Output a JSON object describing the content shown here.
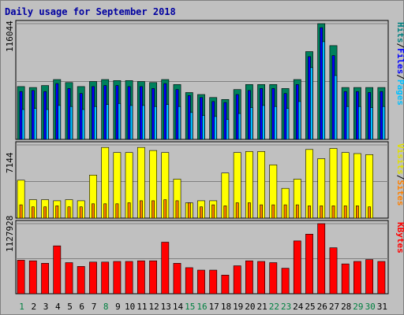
{
  "chart_data": {
    "type": "bar",
    "title": "Daily usage for September 2018",
    "days": [
      "1",
      "2",
      "3",
      "4",
      "5",
      "6",
      "7",
      "8",
      "9",
      "10",
      "11",
      "12",
      "13",
      "14",
      "15",
      "16",
      "17",
      "18",
      "19",
      "20",
      "21",
      "22",
      "23",
      "24",
      "25",
      "26",
      "27",
      "28",
      "29",
      "30",
      "31"
    ],
    "weekend_days": [
      "1",
      "8",
      "15",
      "16",
      "22",
      "23",
      "29",
      "30"
    ],
    "panels": [
      {
        "name": "pages-files-hits",
        "ymax_label": "116044",
        "ylim": [
          0,
          116044
        ],
        "right_labels": [
          {
            "text": "Hits",
            "color": "#008080"
          },
          {
            "text": "Files",
            "color": "#0000ff"
          },
          {
            "text": "Pages",
            "color": "#00c0ff"
          }
        ],
        "series": [
          {
            "name": "Hits",
            "color": "#00805c",
            "values": [
              53000,
              52000,
              54000,
              60000,
              57000,
              53000,
              58000,
              60000,
              59000,
              59000,
              58000,
              57000,
              60000,
              55000,
              47000,
              45000,
              42000,
              40000,
              50000,
              55000,
              55000,
              55000,
              51000,
              60000,
              88000,
              117000,
              94000,
              52000,
              52000,
              52000,
              52000
            ]
          },
          {
            "name": "Files",
            "color": "#0000ff",
            "values": [
              48000,
              49000,
              48000,
              56000,
              51000,
              46000,
              53000,
              54000,
              54000,
              53000,
              53000,
              51000,
              56000,
              50000,
              44000,
              42000,
              38000,
              37000,
              45000,
              49000,
              51000,
              51000,
              46000,
              55000,
              83000,
              112000,
              84000,
              48000,
              48000,
              47000,
              48000
            ]
          },
          {
            "name": "Pages",
            "color": "#00c0ff",
            "values": [
              30000,
              31000,
              30000,
              34000,
              33000,
              30000,
              33000,
              35000,
              36000,
              34000,
              34000,
              33000,
              35000,
              33000,
              27000,
              24000,
              23000,
              20000,
              26000,
              32000,
              34000,
              33000,
              31000,
              38000,
              72000,
              98000,
              64000,
              33000,
              33000,
              32000,
              33000
            ]
          }
        ]
      },
      {
        "name": "visits-sites",
        "ymax_label": "7144",
        "ylim": [
          0,
          7144
        ],
        "right_labels": [
          {
            "text": "Visits",
            "color": "#e0e000"
          },
          {
            "text": "Sites",
            "color": "#ff8000"
          }
        ],
        "series": [
          {
            "name": "Visits",
            "color": "#ffff00",
            "values": [
              3700,
              1800,
              1800,
              1700,
              1800,
              1700,
              4200,
              6900,
              6400,
              6400,
              6900,
              6600,
              6400,
              3800,
              1500,
              1700,
              1700,
              4400,
              6400,
              6500,
              6500,
              5200,
              2900,
              3800,
              6700,
              5800,
              6800,
              6400,
              6300,
              6200,
              0
            ]
          },
          {
            "name": "Sites",
            "color": "#ff8000",
            "values": [
              1300,
              1100,
              1100,
              1200,
              1100,
              1100,
              1400,
              1400,
              1400,
              1500,
              1700,
              1700,
              1800,
              1700,
              1500,
              1100,
              1300,
              1200,
              1500,
              1500,
              1300,
              1300,
              1300,
              1300,
              1200,
              1200,
              1200,
              1200,
              1200,
              1100,
              0
            ]
          }
        ]
      },
      {
        "name": "kbytes",
        "ymax_label": "1127928",
        "ylim": [
          0,
          1127928
        ],
        "right_labels": [
          {
            "text": "KBytes",
            "color": "#ff0000"
          }
        ],
        "series": [
          {
            "name": "KBytes",
            "color": "#ff0000",
            "values": [
              540000,
              530000,
              490000,
              770000,
              500000,
              440000,
              510000,
              510000,
              520000,
              520000,
              530000,
              530000,
              830000,
              490000,
              420000,
              380000,
              380000,
              300000,
              450000,
              530000,
              520000,
              500000,
              410000,
              850000,
              960000,
              1127928,
              740000,
              480000,
              520000,
              550000,
              520000
            ]
          }
        ]
      }
    ]
  }
}
